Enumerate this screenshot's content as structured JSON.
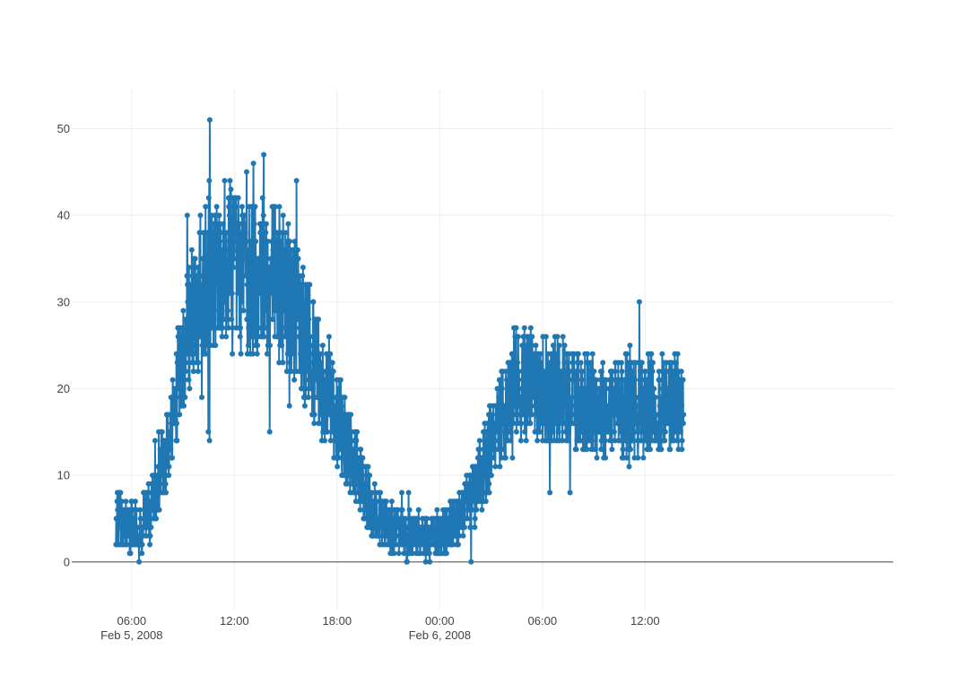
{
  "chart_data": {
    "type": "line",
    "mode": "lines+markers",
    "title": "",
    "xlabel": "",
    "ylabel": "",
    "x_range": [
      "2008-02-05 02:30",
      "2008-02-07 02:30"
    ],
    "x_start": "2008-02-05 05:05",
    "x_end": "2008-02-06 14:15",
    "ylim": [
      -5.5,
      54.5
    ],
    "grid": true,
    "legend": "none",
    "colors": {
      "series": "#1f77b4",
      "grid": "#eeeeee",
      "zeroline": "#444444",
      "text": "#444444"
    },
    "y_ticks": [
      "0",
      "10",
      "20",
      "30",
      "40",
      "50"
    ],
    "x_ticks": [
      {
        "label": "06:00",
        "sub": "Feb 5, 2008"
      },
      {
        "label": "12:00",
        "sub": ""
      },
      {
        "label": "18:00",
        "sub": ""
      },
      {
        "label": "00:00",
        "sub": "Feb 6, 2008"
      },
      {
        "label": "06:00",
        "sub": ""
      },
      {
        "label": "12:00",
        "sub": ""
      }
    ],
    "series": [
      {
        "trend_hours": [
          0,
          1,
          2,
          3,
          4,
          5,
          6,
          7,
          8,
          9,
          10,
          11,
          12,
          13,
          14,
          15,
          16,
          17,
          18,
          19,
          20,
          21,
          22,
          23,
          24,
          25,
          26,
          27,
          28,
          29,
          30,
          31,
          32,
          33
        ],
        "trend_values": [
          5,
          4,
          6,
          13,
          25,
          32,
          35,
          33,
          32,
          33,
          31,
          26,
          21,
          16,
          11,
          6,
          4,
          3,
          3,
          3,
          5,
          8,
          14,
          19,
          21,
          20,
          20,
          19,
          18,
          18,
          18,
          18,
          18,
          18
        ],
        "values": []
      }
    ]
  }
}
